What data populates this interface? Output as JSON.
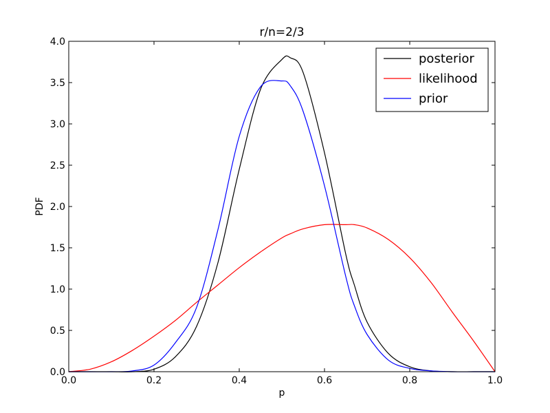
{
  "chart_data": {
    "type": "line",
    "title": "r/n=2/3",
    "xlabel": "p",
    "ylabel": "PDF",
    "xlim": [
      0.0,
      1.0
    ],
    "ylim": [
      0.0,
      4.0
    ],
    "xticks": [
      "0.0",
      "0.2",
      "0.4",
      "0.6",
      "0.8",
      "1.0"
    ],
    "yticks": [
      "0.0",
      "0.5",
      "1.0",
      "1.5",
      "2.0",
      "2.5",
      "3.0",
      "3.5",
      "4.0"
    ],
    "grid": false,
    "legend_position": "top-right",
    "x": [
      0.0,
      0.05,
      0.1,
      0.15,
      0.2,
      0.25,
      0.3,
      0.35,
      0.4,
      0.45,
      0.5,
      0.52,
      0.55,
      0.6,
      0.65,
      0.67,
      0.7,
      0.75,
      0.8,
      0.85,
      0.9,
      0.95,
      1.0
    ],
    "series": [
      {
        "name": "posterior",
        "color": "#000000",
        "values": [
          0.0,
          0.0,
          0.0,
          0.0,
          0.03,
          0.18,
          0.55,
          1.32,
          2.45,
          3.42,
          3.78,
          3.8,
          3.62,
          2.65,
          1.42,
          1.05,
          0.6,
          0.22,
          0.06,
          0.01,
          0.0,
          0.0,
          0.0
        ]
      },
      {
        "name": "likelihood",
        "color": "#ff0000",
        "values": [
          0.0,
          0.03,
          0.12,
          0.26,
          0.43,
          0.62,
          0.84,
          1.05,
          1.26,
          1.45,
          1.62,
          1.67,
          1.73,
          1.78,
          1.78,
          1.78,
          1.74,
          1.6,
          1.38,
          1.08,
          0.72,
          0.37,
          0.0
        ]
      },
      {
        "name": "prior",
        "color": "#0000ff",
        "values": [
          0.0,
          0.0,
          0.0,
          0.01,
          0.08,
          0.35,
          0.78,
          1.72,
          2.85,
          3.45,
          3.52,
          3.46,
          3.15,
          2.25,
          1.15,
          0.8,
          0.45,
          0.14,
          0.04,
          0.01,
          0.0,
          0.0,
          0.0
        ]
      }
    ]
  }
}
